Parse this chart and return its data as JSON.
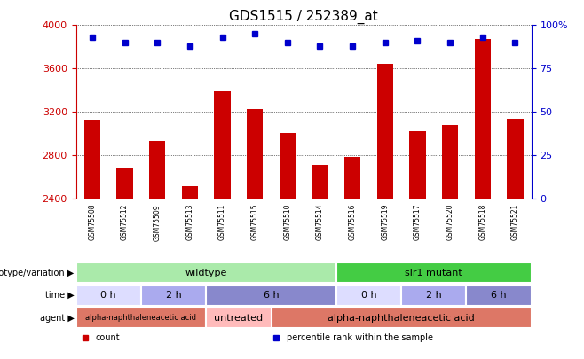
{
  "title": "GDS1515 / 252389_at",
  "samples": [
    "GSM75508",
    "GSM75512",
    "GSM75509",
    "GSM75513",
    "GSM75511",
    "GSM75515",
    "GSM75510",
    "GSM75514",
    "GSM75516",
    "GSM75519",
    "GSM75517",
    "GSM75520",
    "GSM75518",
    "GSM75521"
  ],
  "counts": [
    3130,
    2680,
    2930,
    2520,
    3390,
    3230,
    3010,
    2710,
    2790,
    3640,
    3020,
    3080,
    3870,
    3140
  ],
  "percentile_ranks": [
    93,
    90,
    90,
    88,
    93,
    95,
    90,
    88,
    88,
    90,
    91,
    90,
    93,
    90
  ],
  "ymin": 2400,
  "ymax": 4000,
  "yticks": [
    2400,
    2800,
    3200,
    3600,
    4000
  ],
  "y2ticks": [
    0,
    25,
    50,
    75,
    100
  ],
  "y2labels": [
    "0",
    "25",
    "50",
    "75",
    "100%"
  ],
  "bar_color": "#cc0000",
  "dot_color": "#0000cc",
  "grid_color": "#000000",
  "bg_color": "#ffffff",
  "plot_bg_color": "#ffffff",
  "left_label_color": "#cc0000",
  "right_label_color": "#0000cc",
  "genotype_groups": [
    {
      "label": "wildtype",
      "start": 0,
      "end": 8,
      "color": "#aaeaaa"
    },
    {
      "label": "slr1 mutant",
      "start": 8,
      "end": 14,
      "color": "#44cc44"
    }
  ],
  "time_groups": [
    {
      "label": "0 h",
      "start": 0,
      "end": 2,
      "color": "#ddddff"
    },
    {
      "label": "2 h",
      "start": 2,
      "end": 4,
      "color": "#aaaaee"
    },
    {
      "label": "6 h",
      "start": 4,
      "end": 8,
      "color": "#8888cc"
    },
    {
      "label": "0 h",
      "start": 8,
      "end": 10,
      "color": "#ddddff"
    },
    {
      "label": "2 h",
      "start": 10,
      "end": 12,
      "color": "#aaaaee"
    },
    {
      "label": "6 h",
      "start": 12,
      "end": 14,
      "color": "#8888cc"
    }
  ],
  "agent_groups": [
    {
      "label": "alpha-naphthaleneacetic acid",
      "start": 0,
      "end": 4,
      "color": "#dd7766",
      "fontsize": 6
    },
    {
      "label": "untreated",
      "start": 4,
      "end": 6,
      "color": "#ffbbbb",
      "fontsize": 8
    },
    {
      "label": "alpha-naphthaleneacetic acid",
      "start": 6,
      "end": 14,
      "color": "#dd7766",
      "fontsize": 8
    }
  ],
  "row_labels": [
    "genotype/variation",
    "time",
    "agent"
  ],
  "legend_items": [
    {
      "label": "count",
      "color": "#cc0000"
    },
    {
      "label": "percentile rank within the sample",
      "color": "#0000cc"
    }
  ]
}
